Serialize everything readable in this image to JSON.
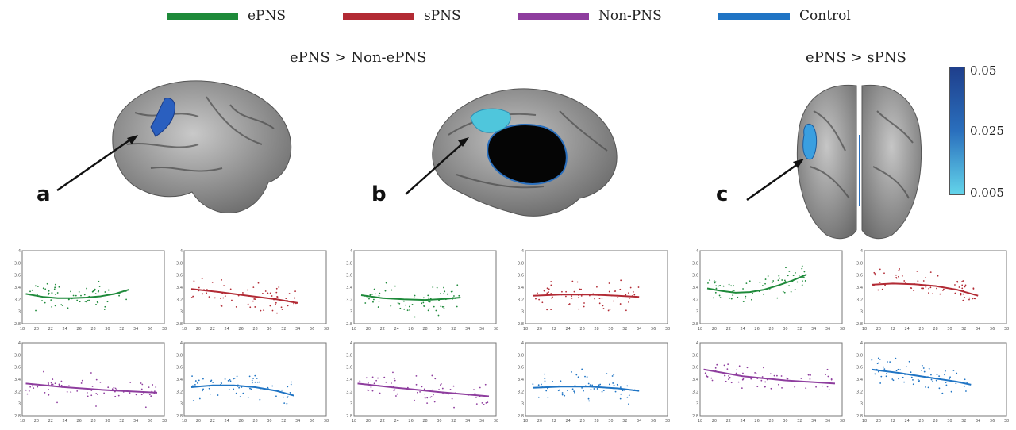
{
  "legend": [
    {
      "label": "ePNS",
      "color": "#1e8a3a"
    },
    {
      "label": "sPNS",
      "color": "#b22a34"
    },
    {
      "label": "Non-PNS",
      "color": "#8e3d9e"
    },
    {
      "label": "Control",
      "color": "#1f74c4"
    }
  ],
  "titles": {
    "left": "ePNS > Non-ePNS",
    "right": "ePNS > sPNS"
  },
  "panels": {
    "a": "a",
    "b": "b",
    "c": "c"
  },
  "colorbar": {
    "top_label": "0.05",
    "mid_label": "0.025",
    "bottom_label": "0.005",
    "colors": [
      "#1f3f8c",
      "#2a6fbd",
      "#63d4ea"
    ]
  },
  "chart_data": [
    {
      "type": "scatter",
      "panel": "a",
      "group": "ePNS",
      "color": "#1e8a3a",
      "xlim": [
        18,
        38
      ],
      "ylim": [
        2.8,
        4
      ],
      "xticks": [
        "18",
        "20",
        "22",
        "24",
        "26",
        "28",
        "30",
        "32",
        "34",
        "36",
        "38"
      ],
      "yticks": [
        "4",
        "3.8",
        "3.6",
        "3.4",
        "3.2",
        "3",
        "2.8"
      ],
      "fit": [
        [
          18.5,
          3.29
        ],
        [
          21,
          3.24
        ],
        [
          23,
          3.22
        ],
        [
          25,
          3.22
        ],
        [
          27,
          3.23
        ],
        [
          29,
          3.25
        ],
        [
          31,
          3.29
        ],
        [
          33,
          3.36
        ]
      ]
    },
    {
      "type": "scatter",
      "panel": "a",
      "group": "sPNS",
      "color": "#b22a34",
      "xlim": [
        18,
        38
      ],
      "ylim": [
        2.8,
        4
      ],
      "xticks": [
        "18",
        "20",
        "22",
        "24",
        "26",
        "28",
        "30",
        "32",
        "34",
        "36",
        "38"
      ],
      "yticks": [
        "4",
        "3.8",
        "3.6",
        "3.4",
        "3.2",
        "3",
        "2.8"
      ],
      "fit": [
        [
          19,
          3.37
        ],
        [
          23,
          3.32
        ],
        [
          27,
          3.26
        ],
        [
          31,
          3.2
        ],
        [
          34,
          3.14
        ]
      ]
    },
    {
      "type": "scatter",
      "panel": "a",
      "group": "Non-PNS",
      "color": "#8e3d9e",
      "xlim": [
        18,
        38
      ],
      "ylim": [
        2.8,
        4
      ],
      "xticks": [
        "18",
        "20",
        "22",
        "24",
        "26",
        "28",
        "30",
        "32",
        "34",
        "36",
        "38"
      ],
      "yticks": [
        "4",
        "3.8",
        "3.6",
        "3.4",
        "3.2",
        "3",
        "2.8"
      ],
      "fit": [
        [
          18.5,
          3.33
        ],
        [
          24,
          3.27
        ],
        [
          30,
          3.22
        ],
        [
          37,
          3.18
        ]
      ]
    },
    {
      "type": "scatter",
      "panel": "a",
      "group": "Control",
      "color": "#1f74c4",
      "xlim": [
        18,
        38
      ],
      "ylim": [
        2.8,
        4
      ],
      "xticks": [
        "18",
        "20",
        "22",
        "24",
        "26",
        "28",
        "30",
        "32",
        "34",
        "36",
        "38"
      ],
      "yticks": [
        "4",
        "3.8",
        "3.6",
        "3.4",
        "3.2",
        "3",
        "2.8"
      ],
      "fit": [
        [
          19,
          3.27
        ],
        [
          22,
          3.3
        ],
        [
          25,
          3.3
        ],
        [
          28,
          3.27
        ],
        [
          31,
          3.21
        ],
        [
          33.5,
          3.13
        ]
      ]
    },
    {
      "type": "scatter",
      "panel": "b",
      "group": "ePNS",
      "color": "#1e8a3a",
      "xlim": [
        18,
        38
      ],
      "ylim": [
        2.8,
        4
      ],
      "xticks": [
        "18",
        "20",
        "22",
        "24",
        "26",
        "28",
        "30",
        "32",
        "34",
        "36",
        "38"
      ],
      "yticks": [
        "4",
        "3.8",
        "3.6",
        "3.4",
        "3.2",
        "3",
        "2.8"
      ],
      "fit": [
        [
          19,
          3.27
        ],
        [
          22,
          3.22
        ],
        [
          25,
          3.2
        ],
        [
          28,
          3.19
        ],
        [
          31,
          3.21
        ],
        [
          33,
          3.23
        ]
      ]
    },
    {
      "type": "scatter",
      "panel": "b",
      "group": "sPNS",
      "color": "#b22a34",
      "xlim": [
        18,
        38
      ],
      "ylim": [
        2.8,
        4
      ],
      "xticks": [
        "18",
        "20",
        "22",
        "24",
        "26",
        "28",
        "30",
        "32",
        "34",
        "36",
        "38"
      ],
      "yticks": [
        "4",
        "3.8",
        "3.6",
        "3.4",
        "3.2",
        "3",
        "2.8"
      ],
      "fit": [
        [
          19,
          3.26
        ],
        [
          23,
          3.28
        ],
        [
          27,
          3.28
        ],
        [
          31,
          3.26
        ],
        [
          34,
          3.24
        ]
      ]
    },
    {
      "type": "scatter",
      "panel": "b",
      "group": "Non-PNS",
      "color": "#8e3d9e",
      "xlim": [
        18,
        38
      ],
      "ylim": [
        2.8,
        4
      ],
      "xticks": [
        "18",
        "20",
        "22",
        "24",
        "26",
        "28",
        "30",
        "32",
        "34",
        "36",
        "38"
      ],
      "yticks": [
        "4",
        "3.8",
        "3.6",
        "3.4",
        "3.2",
        "3",
        "2.8"
      ],
      "fit": [
        [
          18.5,
          3.33
        ],
        [
          24,
          3.26
        ],
        [
          30,
          3.19
        ],
        [
          37,
          3.12
        ]
      ]
    },
    {
      "type": "scatter",
      "panel": "b",
      "group": "Control",
      "color": "#1f74c4",
      "xlim": [
        18,
        38
      ],
      "ylim": [
        2.8,
        4
      ],
      "xticks": [
        "18",
        "20",
        "22",
        "24",
        "26",
        "28",
        "30",
        "32",
        "34",
        "36",
        "38"
      ],
      "yticks": [
        "4",
        "3.8",
        "3.6",
        "3.4",
        "3.2",
        "3",
        "2.8"
      ],
      "fit": [
        [
          19,
          3.26
        ],
        [
          23,
          3.28
        ],
        [
          27,
          3.28
        ],
        [
          31,
          3.25
        ],
        [
          34,
          3.21
        ]
      ]
    },
    {
      "type": "scatter",
      "panel": "c",
      "group": "ePNS",
      "color": "#1e8a3a",
      "xlim": [
        18,
        38
      ],
      "ylim": [
        2.8,
        4
      ],
      "xticks": [
        "18",
        "20",
        "22",
        "24",
        "26",
        "28",
        "30",
        "32",
        "34",
        "36",
        "38"
      ],
      "yticks": [
        "4",
        "3.8",
        "3.6",
        "3.4",
        "3.2",
        "3",
        "2.8"
      ],
      "fit": [
        [
          19,
          3.38
        ],
        [
          21,
          3.34
        ],
        [
          23,
          3.31
        ],
        [
          25,
          3.32
        ],
        [
          27,
          3.36
        ],
        [
          29,
          3.43
        ],
        [
          31,
          3.51
        ],
        [
          33,
          3.61
        ]
      ]
    },
    {
      "type": "scatter",
      "panel": "c",
      "group": "sPNS",
      "color": "#b22a34",
      "xlim": [
        18,
        38
      ],
      "ylim": [
        2.8,
        4
      ],
      "xticks": [
        "18",
        "20",
        "22",
        "24",
        "26",
        "28",
        "30",
        "32",
        "34",
        "36",
        "38"
      ],
      "yticks": [
        "4",
        "3.8",
        "3.6",
        "3.4",
        "3.2",
        "3",
        "2.8"
      ],
      "fit": [
        [
          19,
          3.44
        ],
        [
          22,
          3.46
        ],
        [
          25,
          3.45
        ],
        [
          28,
          3.42
        ],
        [
          31,
          3.36
        ],
        [
          34,
          3.26
        ]
      ]
    },
    {
      "type": "scatter",
      "panel": "c",
      "group": "Non-PNS",
      "color": "#8e3d9e",
      "xlim": [
        18,
        38
      ],
      "ylim": [
        2.8,
        4
      ],
      "xticks": [
        "18",
        "20",
        "22",
        "24",
        "26",
        "28",
        "30",
        "32",
        "34",
        "36",
        "38"
      ],
      "yticks": [
        "4",
        "3.8",
        "3.6",
        "3.4",
        "3.2",
        "3",
        "2.8"
      ],
      "fit": [
        [
          18.5,
          3.56
        ],
        [
          24,
          3.45
        ],
        [
          30,
          3.38
        ],
        [
          37,
          3.33
        ]
      ]
    },
    {
      "type": "scatter",
      "panel": "c",
      "group": "Control",
      "color": "#1f74c4",
      "xlim": [
        18,
        38
      ],
      "ylim": [
        2.8,
        4
      ],
      "xticks": [
        "18",
        "20",
        "22",
        "24",
        "26",
        "28",
        "30",
        "32",
        "34",
        "36",
        "38"
      ],
      "yticks": [
        "4",
        "3.8",
        "3.6",
        "3.4",
        "3.2",
        "3",
        "2.8"
      ],
      "fit": [
        [
          19,
          3.56
        ],
        [
          23,
          3.5
        ],
        [
          27,
          3.43
        ],
        [
          31,
          3.36
        ],
        [
          33,
          3.31
        ]
      ]
    }
  ]
}
